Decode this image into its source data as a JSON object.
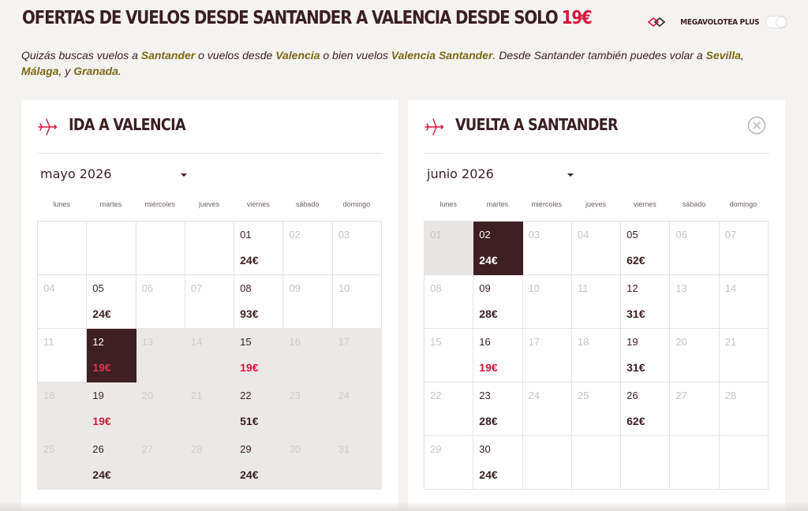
{
  "header": {
    "title": "OFERTAS DE VUELOS DESDE SANTANDER A VALENCIA DESDE SOLO",
    "title_price": "19€",
    "plus_label": "MEGAVOLOTEA PLUS"
  },
  "intro": {
    "t1": "Quizás buscas vuelos a ",
    "l1": "Santander",
    "t2": " o vuelos desde ",
    "l2": "Valencia",
    "t3": " o bien vuelos ",
    "l3": "Valencia Santander",
    "t4": ". Desde Santander también puedes volar a ",
    "l4": "Sevilla",
    "t5": ",",
    "l5": "Málaga",
    "t6": ", y ",
    "l6": "Granada",
    "t7": "."
  },
  "colors": {
    "brand_dark": "#3d2023",
    "accent_red": "#d5173b",
    "link_olive": "#7a6a14"
  },
  "weekdays": [
    "lunes",
    "martes",
    "miércoles",
    "jueves",
    "viernes",
    "sábado",
    "domingo"
  ],
  "outbound": {
    "title": "IDA A VALENCIA",
    "month": "mayo 2026",
    "cells": [
      {
        "d": "",
        "p": "",
        "s": "empty"
      },
      {
        "d": "",
        "p": "",
        "s": "empty"
      },
      {
        "d": "",
        "p": "",
        "s": "empty"
      },
      {
        "d": "",
        "p": "",
        "s": "empty"
      },
      {
        "d": "01",
        "p": "24€",
        "s": ""
      },
      {
        "d": "02",
        "p": "",
        "s": "off"
      },
      {
        "d": "03",
        "p": "",
        "s": "off"
      },
      {
        "d": "04",
        "p": "",
        "s": "off"
      },
      {
        "d": "05",
        "p": "24€",
        "s": ""
      },
      {
        "d": "06",
        "p": "",
        "s": "off"
      },
      {
        "d": "07",
        "p": "",
        "s": "off"
      },
      {
        "d": "08",
        "p": "93€",
        "s": ""
      },
      {
        "d": "09",
        "p": "",
        "s": "off"
      },
      {
        "d": "10",
        "p": "",
        "s": "off"
      },
      {
        "d": "11",
        "p": "",
        "s": "off"
      },
      {
        "d": "12",
        "p": "19€",
        "s": "sel cheap"
      },
      {
        "d": "13",
        "p": "",
        "s": "range off"
      },
      {
        "d": "14",
        "p": "",
        "s": "range off"
      },
      {
        "d": "15",
        "p": "19€",
        "s": "range cheap"
      },
      {
        "d": "16",
        "p": "",
        "s": "range off"
      },
      {
        "d": "17",
        "p": "",
        "s": "range off"
      },
      {
        "d": "18",
        "p": "",
        "s": "range off"
      },
      {
        "d": "19",
        "p": "19€",
        "s": "range cheap"
      },
      {
        "d": "20",
        "p": "",
        "s": "range off"
      },
      {
        "d": "21",
        "p": "",
        "s": "range off"
      },
      {
        "d": "22",
        "p": "51€",
        "s": "range"
      },
      {
        "d": "23",
        "p": "",
        "s": "range off"
      },
      {
        "d": "24",
        "p": "",
        "s": "range off"
      },
      {
        "d": "25",
        "p": "",
        "s": "range off"
      },
      {
        "d": "26",
        "p": "24€",
        "s": "range"
      },
      {
        "d": "27",
        "p": "",
        "s": "range off"
      },
      {
        "d": "28",
        "p": "",
        "s": "range off"
      },
      {
        "d": "29",
        "p": "24€",
        "s": "range"
      },
      {
        "d": "30",
        "p": "",
        "s": "range off"
      },
      {
        "d": "31",
        "p": "",
        "s": "range off"
      }
    ]
  },
  "return": {
    "title": "VUELTA A SANTANDER",
    "month": "junio 2026",
    "cells": [
      {
        "d": "01",
        "p": "",
        "s": "past off"
      },
      {
        "d": "02",
        "p": "24€",
        "s": "sel"
      },
      {
        "d": "03",
        "p": "",
        "s": "off"
      },
      {
        "d": "04",
        "p": "",
        "s": "off"
      },
      {
        "d": "05",
        "p": "62€",
        "s": ""
      },
      {
        "d": "06",
        "p": "",
        "s": "off"
      },
      {
        "d": "07",
        "p": "",
        "s": "off"
      },
      {
        "d": "08",
        "p": "",
        "s": "off"
      },
      {
        "d": "09",
        "p": "28€",
        "s": ""
      },
      {
        "d": "10",
        "p": "",
        "s": "off"
      },
      {
        "d": "11",
        "p": "",
        "s": "off"
      },
      {
        "d": "12",
        "p": "31€",
        "s": ""
      },
      {
        "d": "13",
        "p": "",
        "s": "off"
      },
      {
        "d": "14",
        "p": "",
        "s": "off"
      },
      {
        "d": "15",
        "p": "",
        "s": "off"
      },
      {
        "d": "16",
        "p": "19€",
        "s": "cheap"
      },
      {
        "d": "17",
        "p": "",
        "s": "off"
      },
      {
        "d": "18",
        "p": "",
        "s": "off"
      },
      {
        "d": "19",
        "p": "31€",
        "s": ""
      },
      {
        "d": "20",
        "p": "",
        "s": "off"
      },
      {
        "d": "21",
        "p": "",
        "s": "off"
      },
      {
        "d": "22",
        "p": "",
        "s": "off"
      },
      {
        "d": "23",
        "p": "28€",
        "s": ""
      },
      {
        "d": "24",
        "p": "",
        "s": "off"
      },
      {
        "d": "25",
        "p": "",
        "s": "off"
      },
      {
        "d": "26",
        "p": "62€",
        "s": ""
      },
      {
        "d": "27",
        "p": "",
        "s": "off"
      },
      {
        "d": "28",
        "p": "",
        "s": "off"
      },
      {
        "d": "29",
        "p": "",
        "s": "off"
      },
      {
        "d": "30",
        "p": "24€",
        "s": ""
      },
      {
        "d": "",
        "p": "",
        "s": "empty"
      },
      {
        "d": "",
        "p": "",
        "s": "empty"
      },
      {
        "d": "",
        "p": "",
        "s": "empty"
      },
      {
        "d": "",
        "p": "",
        "s": "empty"
      },
      {
        "d": "",
        "p": "",
        "s": "empty"
      }
    ]
  }
}
